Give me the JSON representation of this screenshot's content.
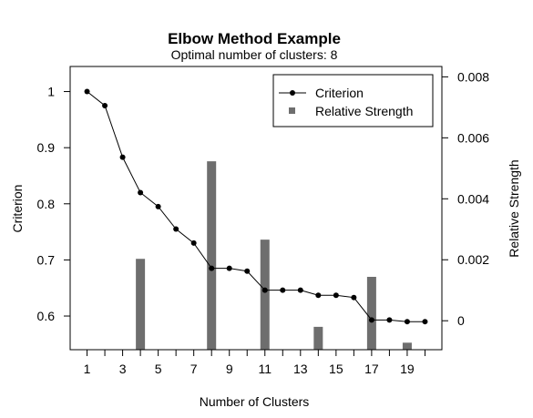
{
  "chart_data": {
    "type": "line",
    "title": "Elbow Method Example",
    "subtitle": "Optimal number of clusters:  8",
    "xlabel": "Number of Clusters",
    "ylabel": "Criterion",
    "y2label": "Relative Strength",
    "xlim": [
      0.05,
      20.95
    ],
    "ylim": [
      0.54,
      1.0447
    ],
    "y2lim": [
      -0.00095,
      0.00834
    ],
    "x_ticks": [
      1,
      3,
      5,
      7,
      9,
      11,
      13,
      15,
      17,
      19
    ],
    "x_tick_labels": [
      "1",
      "3",
      "5",
      "7",
      "9",
      "11",
      "13",
      "15",
      "17",
      "19"
    ],
    "y_ticks": [
      0.6,
      0.7,
      0.8,
      0.9,
      1.0
    ],
    "y_tick_labels": [
      "0.6",
      "0.7",
      "0.8",
      "0.9",
      "1"
    ],
    "y2_ticks": [
      0,
      0.002,
      0.004,
      0.006,
      0.008
    ],
    "y2_tick_labels": [
      "0",
      "0.002",
      "0.004",
      "0.006",
      "0.008"
    ],
    "grid": false,
    "legend_position": "top-right",
    "legend": [
      {
        "label": "Criterion",
        "symbol": "line-point"
      },
      {
        "label": "Relative Strength",
        "symbol": "square"
      }
    ],
    "series": [
      {
        "name": "Criterion",
        "type": "line",
        "axis": "left",
        "color": "#000000",
        "x": [
          1,
          2,
          3,
          4,
          5,
          6,
          7,
          8,
          9,
          10,
          11,
          12,
          13,
          14,
          15,
          16,
          17,
          18,
          19,
          20
        ],
        "values": [
          1.0,
          0.975,
          0.883,
          0.82,
          0.795,
          0.755,
          0.73,
          0.685,
          0.685,
          0.68,
          0.646,
          0.646,
          0.646,
          0.637,
          0.637,
          0.633,
          0.593,
          0.593,
          0.59,
          0.59
        ]
      },
      {
        "name": "Relative Strength",
        "type": "bar",
        "axis": "right",
        "color": "#6e6e6e",
        "x": [
          4,
          8,
          11,
          14,
          17,
          19
        ],
        "values": [
          0.00203,
          0.00523,
          0.00266,
          -0.0002,
          0.00144,
          -0.00072
        ]
      }
    ]
  }
}
